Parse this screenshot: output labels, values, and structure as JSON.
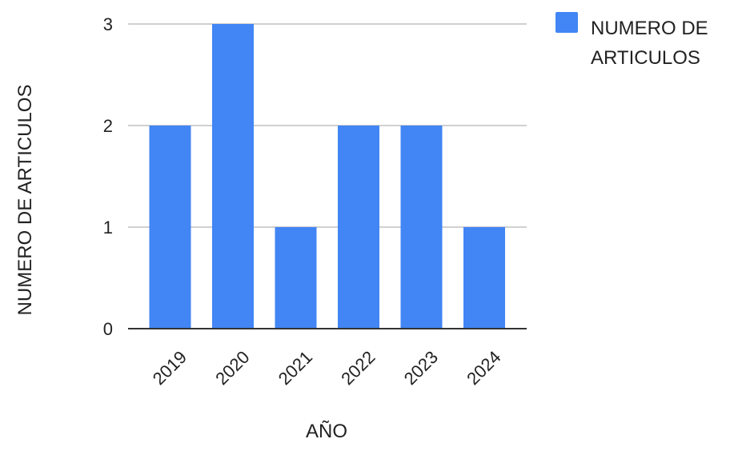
{
  "chart_data": {
    "type": "bar",
    "categories": [
      "2019",
      "2020",
      "2021",
      "2022",
      "2023",
      "2024"
    ],
    "series": [
      {
        "name": "NUMERO DE ARTICULOS",
        "color": "#4285f4",
        "values": [
          2,
          3,
          1,
          2,
          2,
          1
        ]
      }
    ],
    "xlabel": "AÑO",
    "ylabel": "NUMERO DE ARTICULOS",
    "ylim": [
      0,
      3
    ],
    "yticks": [
      "0",
      "1",
      "2",
      "3"
    ],
    "grid": true,
    "legend": {
      "position": "top-right",
      "lines": [
        "NUMERO DE",
        "ARTICULOS"
      ]
    }
  }
}
